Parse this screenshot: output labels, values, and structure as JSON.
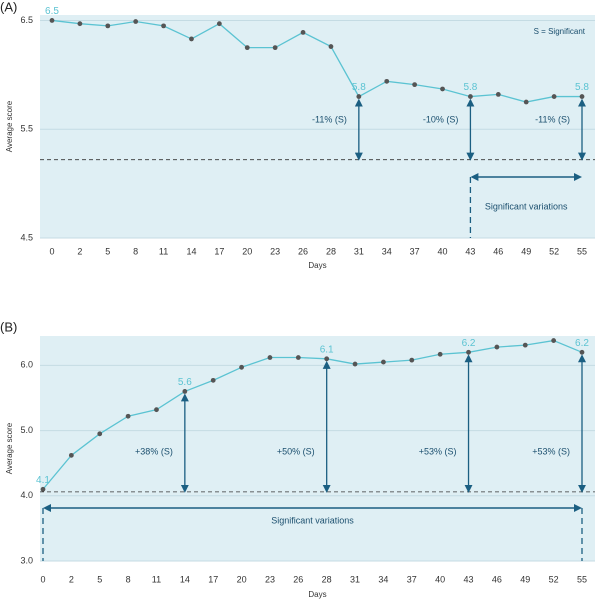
{
  "chart_data": [
    {
      "type": "line",
      "panel_label": "(A)",
      "xlabel": "Days",
      "ylabel": "Average score",
      "categories": [
        0,
        2,
        5,
        8,
        11,
        14,
        17,
        20,
        23,
        26,
        28,
        31,
        34,
        37,
        40,
        43,
        46,
        49,
        52,
        55
      ],
      "values": [
        6.5,
        6.47,
        6.45,
        6.49,
        6.45,
        6.33,
        6.47,
        6.25,
        6.25,
        6.39,
        6.26,
        5.8,
        5.94,
        5.91,
        5.87,
        5.8,
        5.82,
        5.75,
        5.8,
        5.8
      ],
      "color": "#5bc3d2",
      "ylim": [
        4.5,
        6.55
      ],
      "yticks": [
        4.5,
        5.5,
        6.5
      ],
      "grid": true,
      "reference_line": 5.22,
      "annotations": [
        "-11% (S)",
        "-10% (S)",
        "-11% (S)"
      ],
      "note": "S = Significant",
      "span_label": "Significant variations"
    },
    {
      "type": "line",
      "panel_label": "(B)",
      "xlabel": "Days",
      "ylabel": "Average score",
      "categories": [
        0,
        2,
        5,
        8,
        11,
        14,
        17,
        20,
        23,
        26,
        28,
        31,
        34,
        37,
        40,
        43,
        46,
        49,
        52,
        55
      ],
      "values": [
        4.1,
        4.62,
        4.95,
        5.22,
        5.32,
        5.6,
        5.77,
        5.97,
        6.12,
        6.12,
        6.1,
        6.02,
        6.05,
        6.08,
        6.17,
        6.2,
        6.28,
        6.31,
        6.38,
        6.2
      ],
      "color": "#5bc3d2",
      "ylim": [
        3.0,
        6.45
      ],
      "yticks": [
        {
          "value": 3,
          "label": "3.0"
        },
        {
          "value": 4,
          "label": "4.0"
        },
        {
          "value": 5,
          "label": "5.0"
        },
        {
          "value": 6,
          "label": "6.0"
        }
      ],
      "grid": true,
      "reference_line": 4.06,
      "annotations": [
        "+38% (S)",
        "+50% (S)",
        "+53% (S)",
        "+53% (S)"
      ],
      "span_label": "Significant variations"
    }
  ]
}
